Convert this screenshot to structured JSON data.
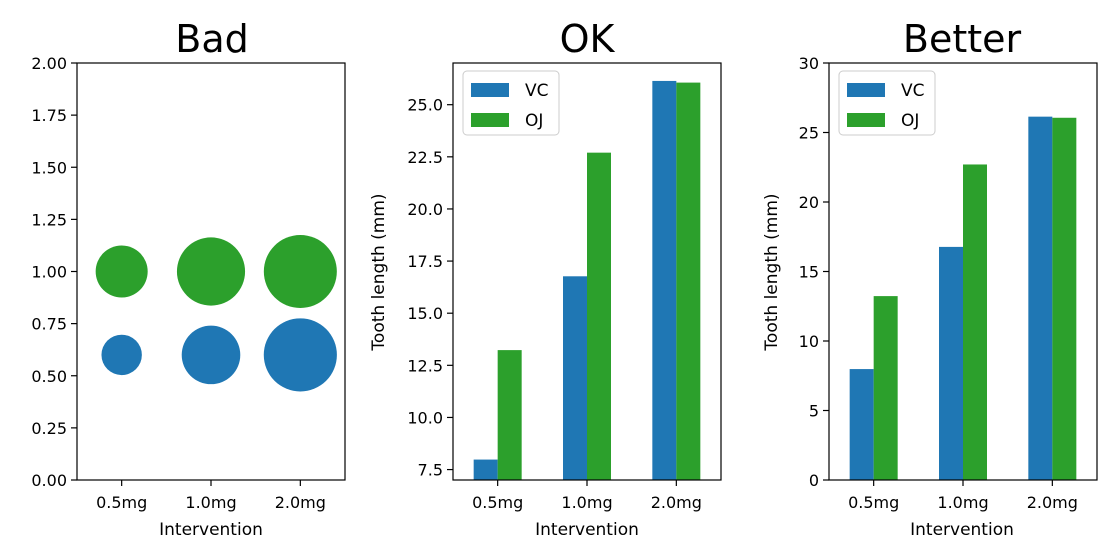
{
  "colors": {
    "VC": "#1f77b4",
    "OJ": "#2ca02c",
    "axes": "#000000"
  },
  "chart_data": [
    {
      "type": "scatter",
      "title": "Bad",
      "xlabel": "Intervention",
      "ylabel": "",
      "categories": [
        "0.5mg",
        "1.0mg",
        "2.0mg"
      ],
      "ylim": [
        0,
        2.0
      ],
      "yticks": [
        "0.00",
        "0.25",
        "0.50",
        "0.75",
        "1.00",
        "1.25",
        "1.50",
        "1.75",
        "2.00"
      ],
      "ytick_values": [
        0,
        0.25,
        0.5,
        0.75,
        1.0,
        1.25,
        1.5,
        1.75,
        2.0
      ],
      "series": [
        {
          "key": "VC",
          "y": 0.6,
          "sizes": [
            7.98,
            16.77,
            26.14
          ]
        },
        {
          "key": "OJ",
          "y": 1.0,
          "sizes": [
            13.23,
            22.7,
            26.06
          ]
        }
      ],
      "grid": false
    },
    {
      "type": "bar",
      "title": "OK",
      "xlabel": "Intervention",
      "ylabel": "Tooth length (mm)",
      "categories": [
        "0.5mg",
        "1.0mg",
        "2.0mg"
      ],
      "ylim": [
        7.0,
        27.0
      ],
      "yticks": [
        "7.5",
        "10.0",
        "12.5",
        "15.0",
        "17.5",
        "20.0",
        "22.5",
        "25.0"
      ],
      "ytick_values": [
        7.5,
        10.0,
        12.5,
        15.0,
        17.5,
        20.0,
        22.5,
        25.0
      ],
      "series": [
        {
          "name": "VC",
          "values": [
            7.98,
            16.77,
            26.14
          ]
        },
        {
          "name": "OJ",
          "values": [
            13.23,
            22.7,
            26.06
          ]
        }
      ],
      "legend": "top-left",
      "grid": false
    },
    {
      "type": "bar",
      "title": "Better",
      "xlabel": "Intervention",
      "ylabel": "Tooth length (mm)",
      "categories": [
        "0.5mg",
        "1.0mg",
        "2.0mg"
      ],
      "ylim": [
        0,
        30
      ],
      "yticks": [
        "0",
        "5",
        "10",
        "15",
        "20",
        "25",
        "30"
      ],
      "ytick_values": [
        0,
        5,
        10,
        15,
        20,
        25,
        30
      ],
      "series": [
        {
          "name": "VC",
          "values": [
            7.98,
            16.77,
            26.14
          ]
        },
        {
          "name": "OJ",
          "values": [
            13.23,
            22.7,
            26.06
          ]
        }
      ],
      "legend": "top-left",
      "grid": false
    }
  ]
}
